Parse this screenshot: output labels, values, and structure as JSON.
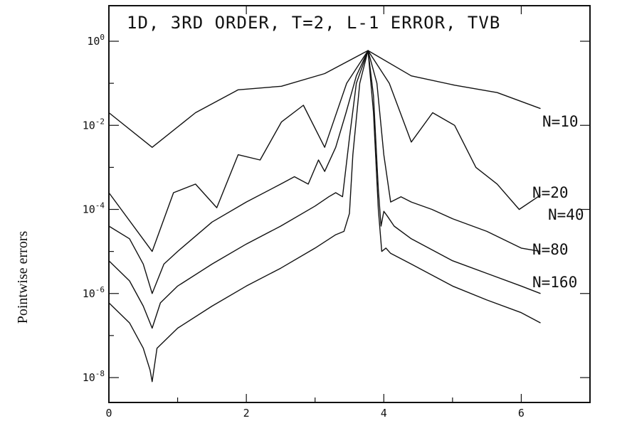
{
  "chart_data": {
    "type": "line",
    "title": "1D, 3RD ORDER, T=2, L-1 ERROR, TVB",
    "ylabel": "Pointwise errors",
    "xlabel": "",
    "xlim": [
      0,
      7
    ],
    "ylim": [
      1e-09,
      1
    ],
    "yscale": "log",
    "x_ticks": [
      "0",
      "2",
      "4",
      "6"
    ],
    "x_tick_values": [
      0,
      2,
      4,
      6
    ],
    "y_ticks": [
      {
        "value": 1,
        "base": "10",
        "exp": "0"
      },
      {
        "value": 0.01,
        "base": "10",
        "exp": "-2"
      },
      {
        "value": 0.0001,
        "base": "10",
        "exp": "-4"
      },
      {
        "value": 1e-06,
        "base": "10",
        "exp": "-6"
      },
      {
        "value": 1e-08,
        "base": "10",
        "exp": "-8"
      }
    ],
    "series": [
      {
        "name": "N=10",
        "x": [
          0,
          0.63,
          1.26,
          1.88,
          2.51,
          3.14,
          3.77,
          4.4,
          5.03,
          5.65,
          6.28
        ],
        "y": [
          0.02,
          0.003,
          0.02,
          0.07,
          0.085,
          0.17,
          0.6,
          0.15,
          0.09,
          0.06,
          0.025
        ]
      },
      {
        "name": "N=20",
        "x": [
          0,
          0.63,
          0.94,
          1.26,
          1.57,
          1.88,
          2.2,
          2.51,
          2.83,
          3.14,
          3.46,
          3.77,
          4.08,
          4.4,
          4.71,
          5.03,
          5.34,
          5.65,
          5.97,
          6.28
        ],
        "y": [
          0.00025,
          1e-05,
          0.00025,
          0.0004,
          0.00011,
          0.002,
          0.0015,
          0.012,
          0.03,
          0.003,
          0.1,
          0.6,
          0.1,
          0.004,
          0.02,
          0.01,
          0.001,
          0.0004,
          0.0001,
          0.00022
        ]
      },
      {
        "name": "N=40",
        "x": [
          0,
          0.3,
          0.5,
          0.63,
          0.8,
          1.0,
          1.5,
          2.0,
          2.5,
          2.7,
          2.9,
          3.05,
          3.14,
          3.3,
          3.45,
          3.6,
          3.77,
          3.9,
          4.0,
          4.1,
          4.25,
          4.4,
          4.7,
          5.0,
          5.5,
          6.0,
          6.28
        ],
        "y": [
          4e-05,
          2e-05,
          5e-06,
          1e-06,
          5e-06,
          1e-05,
          5e-05,
          0.00015,
          0.0004,
          0.0006,
          0.0004,
          0.0015,
          0.0008,
          0.003,
          0.02,
          0.15,
          0.6,
          0.1,
          0.002,
          0.00015,
          0.0002,
          0.00015,
          0.0001,
          6e-05,
          3e-05,
          1.2e-05,
          1e-05
        ]
      },
      {
        "name": "N=80",
        "x": [
          0,
          0.3,
          0.5,
          0.63,
          0.75,
          1.0,
          1.5,
          2.0,
          2.5,
          3.0,
          3.2,
          3.3,
          3.4,
          3.5,
          3.6,
          3.77,
          3.85,
          3.92,
          3.96,
          4.0,
          4.05,
          4.15,
          4.4,
          5.0,
          5.5,
          6.0,
          6.28
        ],
        "y": [
          6e-06,
          2e-06,
          5e-07,
          1.5e-07,
          6e-07,
          1.5e-06,
          5e-06,
          1.5e-05,
          4e-05,
          0.00012,
          0.0002,
          0.00025,
          0.0002,
          0.005,
          0.1,
          0.6,
          0.05,
          0.0003,
          4e-05,
          9e-05,
          7e-05,
          4e-05,
          2e-05,
          6e-06,
          3e-06,
          1.5e-06,
          1e-06
        ]
      },
      {
        "name": "N=160",
        "x": [
          0,
          0.3,
          0.5,
          0.6,
          0.63,
          0.7,
          1.0,
          1.5,
          2.0,
          2.5,
          3.0,
          3.3,
          3.42,
          3.5,
          3.55,
          3.65,
          3.77,
          3.85,
          3.92,
          3.97,
          4.03,
          4.1,
          4.4,
          5.0,
          5.5,
          6.0,
          6.28
        ],
        "y": [
          6e-07,
          2e-07,
          5e-08,
          1.5e-08,
          8e-09,
          5e-08,
          1.5e-07,
          5e-07,
          1.5e-06,
          4e-06,
          1.2e-05,
          2.5e-05,
          3e-05,
          8e-05,
          0.002,
          0.1,
          0.6,
          0.02,
          0.0001,
          1e-05,
          1.2e-05,
          9e-06,
          5e-06,
          1.5e-06,
          7e-07,
          3.5e-07,
          2e-07
        ]
      }
    ]
  }
}
